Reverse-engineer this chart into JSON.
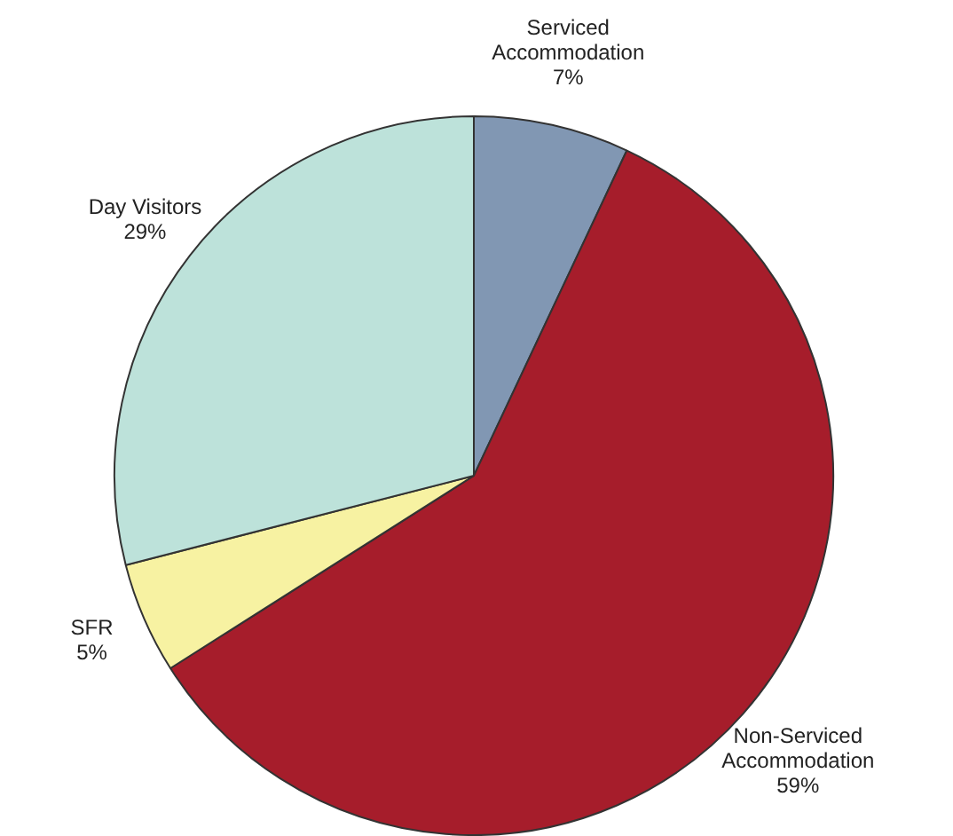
{
  "chart_data": {
    "type": "pie",
    "categories": [
      "Serviced Accommodation",
      "Non-Serviced Accommodation",
      "SFR",
      "Day Visitors"
    ],
    "values": [
      7,
      59,
      5,
      29
    ],
    "value_labels": [
      "7%",
      "59%",
      "5%",
      "29%"
    ],
    "colors": [
      "#8197b3",
      "#a61d2b",
      "#f7f2a2",
      "#bde2da"
    ],
    "legend": false
  }
}
